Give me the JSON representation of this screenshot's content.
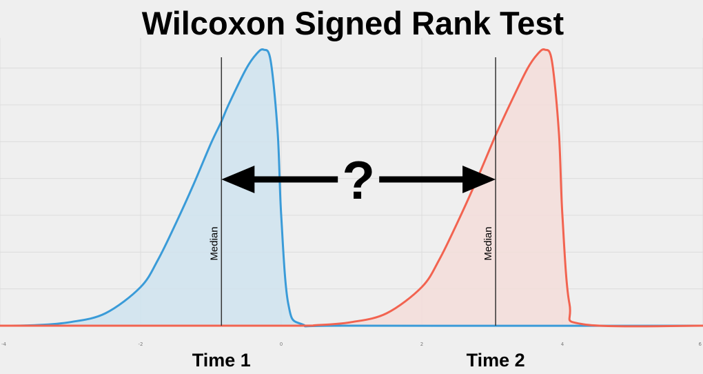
{
  "chart_data": {
    "type": "area",
    "title": "Wilcoxon Signed Rank Test",
    "xlim": [
      -4,
      6
    ],
    "ylim": [
      0,
      1
    ],
    "x_ticks": [
      -4,
      -2,
      0,
      2,
      4,
      6
    ],
    "x_tick_labels": [
      "-4",
      "-2",
      "0",
      "2",
      "4",
      "6"
    ],
    "grid": true,
    "legend": "none",
    "series": [
      {
        "name": "Time 1",
        "color": "#3a9bd8",
        "fill": "#cfe3ee",
        "median": -0.85,
        "median_label": "Median",
        "x": [
          -4,
          -3.5,
          -3,
          -2.5,
          -2,
          -1.75,
          -1.5,
          -1.25,
          -1,
          -0.85,
          -0.75,
          -0.5,
          -0.35,
          -0.25,
          -0.15,
          -0.05,
          0,
          0.1,
          0.3,
          1,
          6
        ],
        "y": [
          0,
          0.002,
          0.013,
          0.045,
          0.14,
          0.24,
          0.37,
          0.51,
          0.66,
          0.74,
          0.8,
          0.93,
          0.985,
          1.0,
          0.96,
          0.7,
          0.4,
          0.08,
          0.005,
          0,
          0
        ]
      },
      {
        "name": "Time 2",
        "color": "#f26350",
        "fill": "#f3ddd9",
        "median": 3.05,
        "median_label": "Median",
        "x": [
          -4,
          0,
          0.5,
          1,
          1.5,
          2,
          2.25,
          2.5,
          2.75,
          3,
          3.05,
          3.25,
          3.5,
          3.65,
          3.75,
          3.85,
          3.95,
          4,
          4.1,
          4.3,
          6
        ],
        "y": [
          0,
          0,
          0.002,
          0.013,
          0.045,
          0.14,
          0.24,
          0.37,
          0.51,
          0.66,
          0.69,
          0.8,
          0.93,
          0.985,
          1.0,
          0.96,
          0.7,
          0.4,
          0.08,
          0.005,
          0
        ]
      }
    ],
    "annotation": {
      "text": "?",
      "arrow_from": -0.85,
      "arrow_to": 3.05,
      "arrow_y": 0.53
    }
  }
}
